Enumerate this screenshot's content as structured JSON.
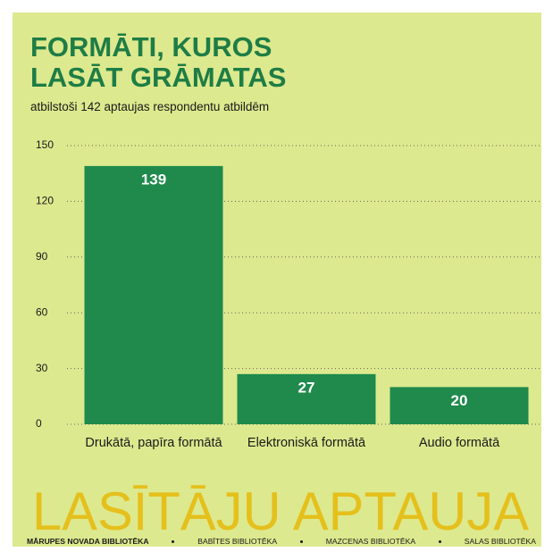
{
  "chart_data": {
    "type": "bar",
    "title": "FORMĀTI, KUROS LASĀT GRĀMATAS",
    "subtitle": "atbilstoši 142 aptaujas respondentu atbildēm",
    "categories": [
      "Drukātā, papīra formātā",
      "Elektroniskā formātā",
      "Audio formātā"
    ],
    "values": [
      139,
      27,
      20
    ],
    "color": "#1f8a4c",
    "ylim": [
      0,
      150
    ],
    "yticks": [
      0,
      30,
      60,
      90,
      120,
      150
    ],
    "grid": true
  },
  "banner": "LASĪTĀJU APTAUJA",
  "footer": [
    "MĀRUPES NOVADA BIBLIOTĒKA",
    "BABĪTES BIBLIOTĒKA",
    "MAZCENAS BIBLIOTĒKA",
    "SALAS BIBLIOTĒKA"
  ]
}
